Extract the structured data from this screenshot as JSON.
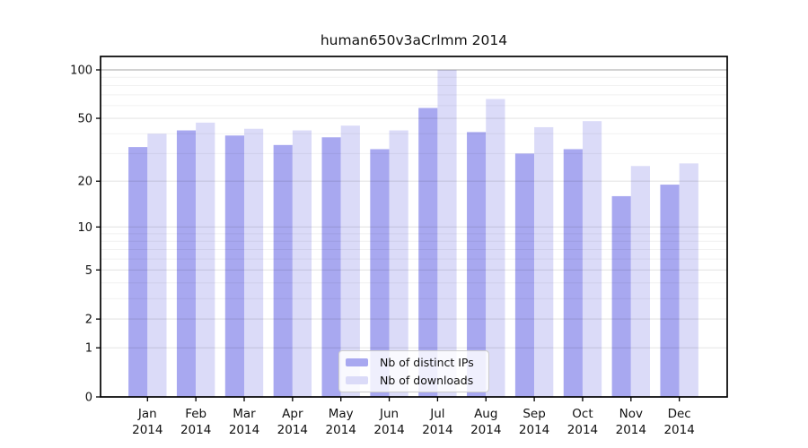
{
  "chart_data": {
    "type": "bar",
    "title": "human650v3aCrlmm 2014",
    "year": "2014",
    "months": [
      "Jan",
      "Feb",
      "Mar",
      "Apr",
      "May",
      "Jun",
      "Jul",
      "Aug",
      "Sep",
      "Oct",
      "Nov",
      "Dec"
    ],
    "categories": [
      "Jan 2014",
      "Feb 2014",
      "Mar 2014",
      "Apr 2014",
      "May 2014",
      "Jun 2014",
      "Jul 2014",
      "Aug 2014",
      "Sep 2014",
      "Oct 2014",
      "Nov 2014",
      "Dec 2014"
    ],
    "series": [
      {
        "name": "Nb of distinct IPs",
        "color": "#a8a8f0",
        "values": [
          33,
          42,
          39,
          34,
          38,
          32,
          58,
          41,
          30,
          32,
          16,
          19
        ]
      },
      {
        "name": "Nb of downloads",
        "color": "#dbdbf8",
        "values": [
          40,
          47,
          43,
          42,
          45,
          42,
          100,
          66,
          44,
          48,
          25,
          26
        ]
      }
    ],
    "ylabel": "",
    "xlabel": "",
    "scale": "log1p",
    "ylim": [
      0,
      100
    ],
    "y_ticks": [
      0,
      1,
      2,
      5,
      10,
      20,
      50,
      100
    ],
    "y_minor_gridlines": [
      3,
      4,
      6,
      7,
      8,
      9,
      30,
      40,
      60,
      70,
      80,
      90
    ],
    "grid": true,
    "legend_position": "lower center",
    "colors": {
      "axis": "#000000",
      "top_gridline": "rgba(0,0,0,0.35)",
      "major_gridline": "rgba(0,0,0,0.10)",
      "minor_gridline": "rgba(0,0,0,0.055)",
      "text": "#111111"
    }
  }
}
